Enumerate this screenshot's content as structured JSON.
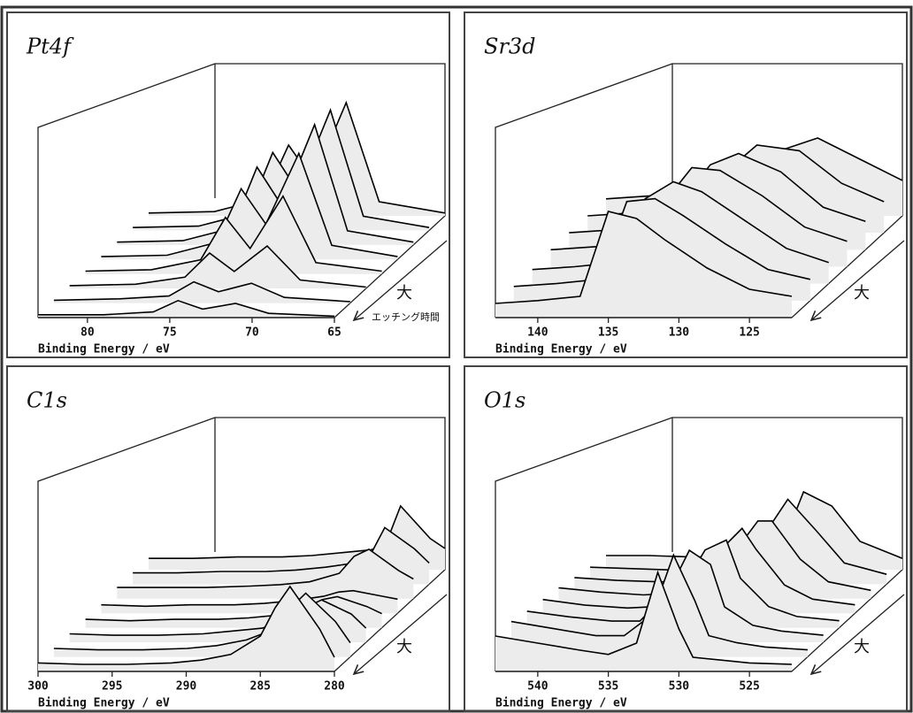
{
  "chart_data": [
    {
      "type": "waterfall",
      "title": "Pt4f",
      "x_label": "Binding Energy / eV",
      "xlim": [
        83,
        65
      ],
      "xticks": [
        80,
        75,
        70,
        65
      ],
      "ylim": [
        0,
        100
      ],
      "x": [
        83,
        79,
        76,
        74.5,
        73,
        71,
        69,
        65
      ],
      "series": [
        {
          "color": "#000000",
          "values": [
            2,
            2,
            4,
            12,
            6,
            10,
            3,
            1
          ]
        },
        {
          "color": "#000000",
          "values": [
            2,
            3,
            5,
            15,
            8,
            14,
            4,
            1
          ]
        },
        {
          "color": "#000000",
          "values": [
            2,
            3,
            8,
            25,
            12,
            30,
            6,
            1
          ]
        },
        {
          "color": "#000000",
          "values": [
            2,
            3,
            10,
            40,
            18,
            55,
            8,
            2
          ]
        },
        {
          "color": "#000000",
          "values": [
            2,
            3,
            12,
            50,
            25,
            75,
            10,
            2
          ]
        },
        {
          "color": "#000000",
          "values": [
            2,
            3,
            12,
            55,
            28,
            85,
            10,
            2
          ]
        },
        {
          "color": "#000000",
          "values": [
            2,
            3,
            12,
            55,
            28,
            85,
            10,
            2
          ]
        },
        {
          "color": "#000000",
          "values": [
            2,
            3,
            12,
            50,
            25,
            80,
            10,
            2
          ]
        }
      ],
      "annotations": [
        "大",
        "エッチング時間"
      ]
    },
    {
      "type": "waterfall",
      "title": "Sr3d",
      "x_label": "Binding Energy / eV",
      "xlim": [
        143,
        122
      ],
      "xticks": [
        140,
        135,
        130,
        125
      ],
      "ylim": [
        0,
        100
      ],
      "x": [
        143,
        140,
        137,
        135,
        133,
        131,
        128,
        125,
        122
      ],
      "series": [
        {
          "color": "#000000",
          "values": [
            10,
            12,
            15,
            75,
            70,
            55,
            35,
            20,
            15
          ]
        },
        {
          "color": "#000000",
          "values": [
            10,
            12,
            15,
            70,
            72,
            60,
            40,
            22,
            15
          ]
        },
        {
          "color": "#000000",
          "values": [
            10,
            12,
            15,
            60,
            72,
            65,
            45,
            25,
            15
          ]
        },
        {
          "color": "#000000",
          "values": [
            12,
            14,
            16,
            45,
            70,
            68,
            50,
            28,
            18
          ]
        },
        {
          "color": "#000000",
          "values": [
            12,
            14,
            16,
            35,
            60,
            68,
            55,
            30,
            20
          ]
        },
        {
          "color": "#000000",
          "values": [
            12,
            14,
            16,
            28,
            45,
            62,
            58,
            35,
            22
          ]
        },
        {
          "color": "#000000",
          "values": [
            12,
            14,
            16,
            22,
            30,
            45,
            55,
            40,
            25
          ]
        }
      ],
      "annotations": [
        "大"
      ]
    },
    {
      "type": "waterfall",
      "title": "C1s",
      "x_label": "Binding Energy / eV",
      "xlim": [
        300,
        280
      ],
      "xticks": [
        300,
        295,
        290,
        285,
        280
      ],
      "ylim": [
        0,
        100
      ],
      "x": [
        300,
        297,
        294,
        291,
        289,
        287,
        285,
        284,
        283,
        281,
        280
      ],
      "series": [
        {
          "color": "#000000",
          "values": [
            6,
            5,
            5,
            6,
            8,
            12,
            25,
            45,
            60,
            30,
            10
          ]
        },
        {
          "color": "#000000",
          "values": [
            6,
            5,
            5,
            6,
            8,
            12,
            20,
            35,
            45,
            25,
            10
          ]
        },
        {
          "color": "#000000",
          "values": [
            6,
            5,
            5,
            6,
            8,
            10,
            18,
            25,
            30,
            20,
            10
          ]
        },
        {
          "color": "#000000",
          "values": [
            6,
            5,
            6,
            6,
            7,
            9,
            14,
            20,
            22,
            15,
            10
          ]
        },
        {
          "color": "#000000",
          "values": [
            6,
            5,
            6,
            6,
            7,
            9,
            12,
            15,
            16,
            12,
            10
          ]
        },
        {
          "color": "#000000",
          "values": [
            8,
            8,
            8,
            9,
            10,
            12,
            18,
            30,
            35,
            20,
            14
          ]
        },
        {
          "color": "#000000",
          "values": [
            8,
            8,
            9,
            9,
            10,
            12,
            15,
            20,
            40,
            25,
            15
          ]
        },
        {
          "color": "#000000",
          "values": [
            8,
            8,
            9,
            9,
            10,
            12,
            14,
            18,
            45,
            22,
            15
          ]
        }
      ],
      "annotations": [
        "大"
      ]
    },
    {
      "type": "waterfall",
      "title": "O1s",
      "x_label": "Binding Energy / eV",
      "xlim": [
        543,
        522
      ],
      "xticks": [
        540,
        535,
        530,
        525
      ],
      "ylim": [
        0,
        100
      ],
      "x": [
        543,
        540,
        537,
        535,
        533,
        531.5,
        530,
        529,
        527,
        525,
        522
      ],
      "series": [
        {
          "color": "#000000",
          "values": [
            25,
            20,
            15,
            12,
            20,
            70,
            30,
            10,
            8,
            6,
            5
          ]
        },
        {
          "color": "#000000",
          "values": [
            25,
            20,
            15,
            15,
            30,
            72,
            40,
            15,
            10,
            7,
            5
          ]
        },
        {
          "color": "#000000",
          "values": [
            22,
            18,
            15,
            15,
            35,
            65,
            55,
            25,
            12,
            8,
            5
          ]
        },
        {
          "color": "#000000",
          "values": [
            20,
            16,
            14,
            15,
            30,
            55,
            62,
            35,
            15,
            8,
            5
          ]
        },
        {
          "color": "#000000",
          "values": [
            18,
            15,
            13,
            14,
            25,
            45,
            60,
            45,
            20,
            10,
            6
          ]
        },
        {
          "color": "#000000",
          "values": [
            15,
            13,
            12,
            12,
            20,
            35,
            55,
            55,
            28,
            12,
            6
          ]
        },
        {
          "color": "#000000",
          "values": [
            12,
            11,
            10,
            10,
            14,
            25,
            45,
            60,
            38,
            15,
            7
          ]
        },
        {
          "color": "#000000",
          "values": [
            10,
            10,
            9,
            9,
            10,
            15,
            30,
            55,
            45,
            20,
            8
          ]
        }
      ],
      "annotations": [
        "大"
      ]
    }
  ]
}
